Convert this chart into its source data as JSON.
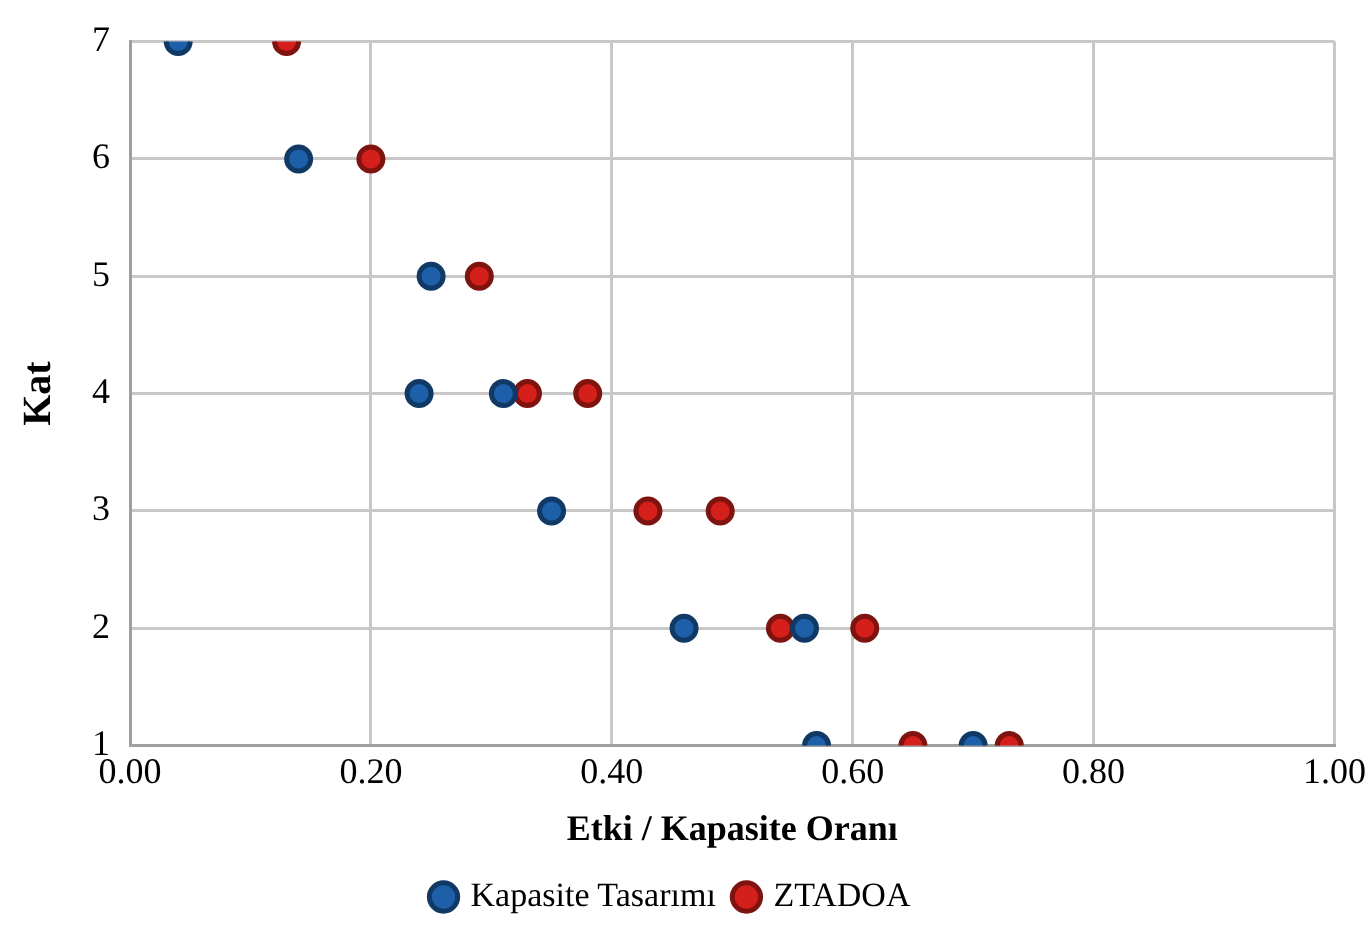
{
  "chart_data": {
    "type": "scatter",
    "xlabel": "Etki / Kapasite Oranı",
    "ylabel": "Kat",
    "xlim": [
      0,
      1
    ],
    "xticks": [
      {
        "value": 0,
        "label": "0.00"
      },
      {
        "value": 0.2,
        "label": "0.20"
      },
      {
        "value": 0.4,
        "label": "0.40"
      },
      {
        "value": 0.6,
        "label": "0.60"
      },
      {
        "value": 0.8,
        "label": "0.80"
      },
      {
        "value": 1,
        "label": "1.00"
      }
    ],
    "ylim": [
      1,
      7
    ],
    "yticks": [
      1,
      2,
      3,
      4,
      5,
      6,
      7
    ],
    "grid": true,
    "legend": "bottom",
    "marker": "circle",
    "series": [
      {
        "name": "Kapasite Tasarımı",
        "color": "#1d5fa8",
        "x": [
          0.04,
          0.14,
          0.25,
          0.24,
          0.31,
          0.35,
          0.46,
          0.56,
          0.57,
          0.7
        ],
        "values": [
          7,
          6,
          5,
          4,
          4,
          3,
          2,
          2,
          1,
          1
        ]
      },
      {
        "name": "ZTADOA",
        "color": "#d41f1a",
        "x": [
          0.13,
          0.2,
          0.29,
          0.33,
          0.38,
          0.43,
          0.49,
          0.54,
          0.61,
          0.65,
          0.73
        ],
        "values": [
          7,
          6,
          5,
          4,
          4,
          3,
          3,
          2,
          2,
          1,
          1
        ]
      }
    ]
  }
}
